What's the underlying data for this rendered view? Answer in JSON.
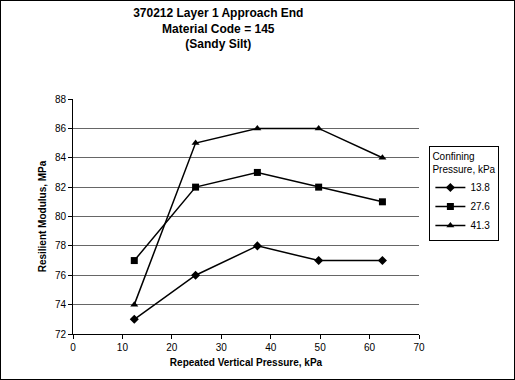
{
  "chart_data": {
    "type": "line",
    "title": "370212 Layer 1 Approach End\nMaterial Code = 145\n(Sandy Silt)",
    "x_label": "Repeated Vertical Pressure, kPa",
    "y_label": "Resilient Modulus, MPa",
    "legend_title": "Confining\nPressure, kPa",
    "x": [
      12.4,
      24.8,
      37.3,
      49.7,
      62.6
    ],
    "series": [
      {
        "name": "13.8",
        "color": "#000000",
        "marker": "diamond",
        "values": [
          73,
          76,
          78,
          77,
          77
        ]
      },
      {
        "name": "27.6",
        "color": "#000000",
        "marker": "square",
        "values": [
          77,
          82,
          83,
          82,
          81
        ]
      },
      {
        "name": "41.3",
        "color": "#000000",
        "marker": "triangle-up",
        "values": [
          74,
          85,
          86,
          86,
          84
        ]
      }
    ],
    "xlim": [
      0,
      70
    ],
    "xticks": [
      0,
      10,
      20,
      30,
      40,
      50,
      60,
      70
    ],
    "ylim": [
      72,
      88
    ],
    "yticks": [
      72,
      74,
      76,
      78,
      80,
      82,
      84,
      86,
      88
    ],
    "grid": true,
    "legend": "right"
  }
}
